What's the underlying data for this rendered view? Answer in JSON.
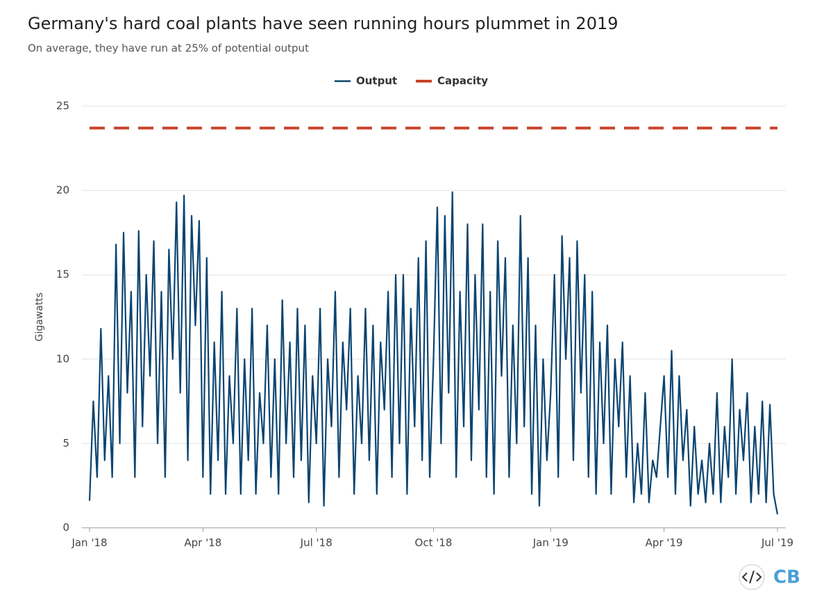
{
  "chart_data": {
    "type": "line",
    "title": "Germany's hard coal plants have seen running hours plummet in 2019",
    "subtitle": "On average, they have run at 25% of potential output",
    "y_label": "Gigawatts",
    "logo": "CB",
    "grid": true,
    "legend": "top",
    "ylim": [
      0,
      25
    ],
    "yticks": [
      0,
      5,
      10,
      15,
      20,
      25
    ],
    "categories": [
      "Jan '18",
      null,
      null,
      null,
      null,
      null,
      null,
      null,
      null,
      null,
      null,
      null,
      null,
      null,
      null,
      null,
      null,
      null,
      null,
      null,
      null,
      null,
      null,
      null,
      null,
      null,
      null,
      null,
      null,
      null,
      "Apr '18",
      null,
      null,
      null,
      null,
      null,
      null,
      null,
      null,
      null,
      null,
      null,
      null,
      null,
      null,
      null,
      null,
      null,
      null,
      null,
      null,
      null,
      null,
      null,
      null,
      null,
      null,
      null,
      null,
      null,
      "Jul '18",
      null,
      null,
      null,
      null,
      null,
      null,
      null,
      null,
      null,
      null,
      null,
      null,
      null,
      null,
      null,
      null,
      null,
      null,
      null,
      null,
      null,
      null,
      null,
      null,
      null,
      null,
      null,
      null,
      null,
      null,
      "Oct '18",
      null,
      null,
      null,
      null,
      null,
      null,
      null,
      null,
      null,
      null,
      null,
      null,
      null,
      null,
      null,
      null,
      null,
      null,
      null,
      null,
      null,
      null,
      null,
      null,
      null,
      null,
      null,
      null,
      null,
      null,
      "Jan '19",
      null,
      null,
      null,
      null,
      null,
      null,
      null,
      null,
      null,
      null,
      null,
      null,
      null,
      null,
      null,
      null,
      null,
      null,
      null,
      null,
      null,
      null,
      null,
      null,
      null,
      null,
      null,
      null,
      null,
      "Apr '19",
      null,
      null,
      null,
      null,
      null,
      null,
      null,
      null,
      null,
      null,
      null,
      null,
      null,
      null,
      null,
      null,
      null,
      null,
      null,
      null,
      null,
      null,
      null,
      null,
      null,
      null,
      null,
      null,
      null,
      "Jul '19"
    ],
    "series": [
      {
        "name": "Output",
        "color": "#0b4470",
        "style": "solid",
        "values": [
          1.6,
          7.5,
          3,
          11.8,
          4,
          9,
          3,
          16.8,
          5,
          17.5,
          8,
          14,
          3,
          17.6,
          6,
          15,
          9,
          17,
          5,
          14,
          3,
          16.5,
          10,
          19.3,
          8,
          19.7,
          4,
          18.5,
          12,
          18.2,
          3,
          16,
          2,
          11,
          4,
          14,
          2,
          9,
          5,
          13,
          2,
          10,
          4,
          13,
          2,
          8,
          5,
          12,
          3,
          10,
          2,
          13.5,
          5,
          11,
          3,
          13,
          4,
          12,
          1.5,
          9,
          5,
          13,
          1.3,
          10,
          6,
          14,
          3,
          11,
          7,
          13,
          2,
          9,
          5,
          13,
          4,
          12,
          2,
          11,
          7,
          14,
          3,
          15,
          5,
          15,
          2,
          13,
          6,
          16,
          4,
          17,
          3,
          10,
          19,
          5,
          18.5,
          8,
          19.9,
          3,
          14,
          6,
          18,
          4,
          15,
          7,
          18,
          3,
          14,
          2,
          17,
          9,
          16,
          3,
          12,
          5,
          18.5,
          6,
          16,
          2,
          12,
          1.3,
          10,
          4,
          8,
          15,
          3,
          17.3,
          10,
          16,
          4,
          17,
          8,
          15,
          3,
          14,
          2,
          11,
          5,
          12,
          2,
          10,
          6,
          11,
          3,
          9,
          1.5,
          5,
          2,
          8,
          1.5,
          4,
          3,
          6,
          9,
          3,
          10.5,
          2,
          9,
          4,
          7,
          1.3,
          6,
          2,
          4,
          1.5,
          5,
          2,
          8,
          1.5,
          6,
          3,
          10,
          2,
          7,
          4,
          8,
          1.5,
          6,
          2,
          7.5,
          1.5,
          7.3,
          2,
          0.8
        ]
      },
      {
        "name": "Capacity",
        "color": "#c8432b",
        "style": "dashed",
        "values": [
          23.7,
          23.7,
          23.7,
          23.7,
          23.7,
          23.7,
          23.7,
          23.7,
          23.7,
          23.7,
          23.7,
          23.7,
          23.7,
          23.7,
          23.7,
          23.7,
          23.7,
          23.7,
          23.7,
          23.7,
          23.7,
          23.7,
          23.7,
          23.7,
          23.7,
          23.7,
          23.7,
          23.7,
          23.7,
          23.7,
          23.7,
          23.7,
          23.7,
          23.7,
          23.7,
          23.7,
          23.7,
          23.7,
          23.7,
          23.7,
          23.7,
          23.7,
          23.7,
          23.7,
          23.7,
          23.7,
          23.7,
          23.7,
          23.7,
          23.7,
          23.7,
          23.7,
          23.7,
          23.7,
          23.7,
          23.7,
          23.7,
          23.7,
          23.7,
          23.7,
          23.7,
          23.7,
          23.7,
          23.7,
          23.7,
          23.7,
          23.7,
          23.7,
          23.7,
          23.7,
          23.7,
          23.7,
          23.7,
          23.7,
          23.7,
          23.7,
          23.7,
          23.7,
          23.7,
          23.7,
          23.7,
          23.7,
          23.7,
          23.7,
          23.7,
          23.7,
          23.7,
          23.7,
          23.7,
          23.7,
          23.7,
          23.7,
          23.7,
          23.7,
          23.7,
          23.7,
          23.7,
          23.7,
          23.7,
          23.7,
          23.7,
          23.7,
          23.7,
          23.7,
          23.7,
          23.7,
          23.7,
          23.7,
          23.7,
          23.7,
          23.7,
          23.7,
          23.7,
          23.7,
          23.7,
          23.7,
          23.7,
          23.7,
          23.7,
          23.7,
          23.7,
          23.7,
          23.7,
          23.7,
          23.7,
          23.7,
          23.7,
          23.7,
          23.7,
          23.7,
          23.7,
          23.7,
          23.7,
          23.7,
          23.7,
          23.7,
          23.7,
          23.7,
          23.7,
          23.7,
          23.7,
          23.7,
          23.7,
          23.7,
          23.7,
          23.7,
          23.7,
          23.7,
          23.7,
          23.7,
          23.7,
          23.7,
          23.7,
          23.7,
          23.7,
          23.7,
          23.7,
          23.7,
          23.7,
          23.7,
          23.7,
          23.7,
          23.7,
          23.7,
          23.7,
          23.7,
          23.7,
          23.7,
          23.7,
          23.7,
          23.7,
          23.7,
          23.7,
          23.7,
          23.7,
          23.7,
          23.7,
          23.7,
          23.7,
          23.7,
          23.7,
          23.7,
          23.7
        ]
      }
    ]
  }
}
